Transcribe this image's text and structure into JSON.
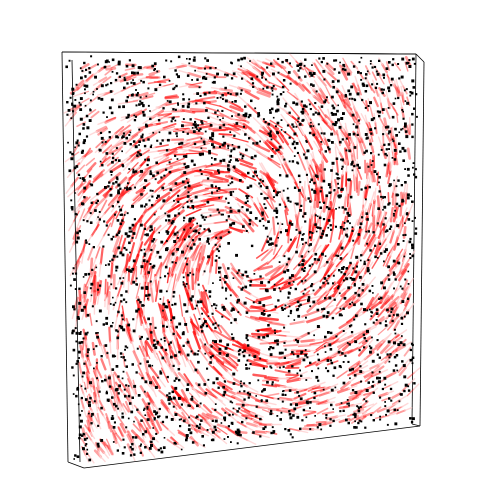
{
  "visualization": {
    "type": "3d-flow-field",
    "pattern": "vortex",
    "rotation": "clockwise",
    "colors": {
      "background": "#ffffff",
      "box_edges": "#000000",
      "streak_head": "#ff1010",
      "streak_tail": "#ffd0d0",
      "particles": "#000000"
    }
  }
}
